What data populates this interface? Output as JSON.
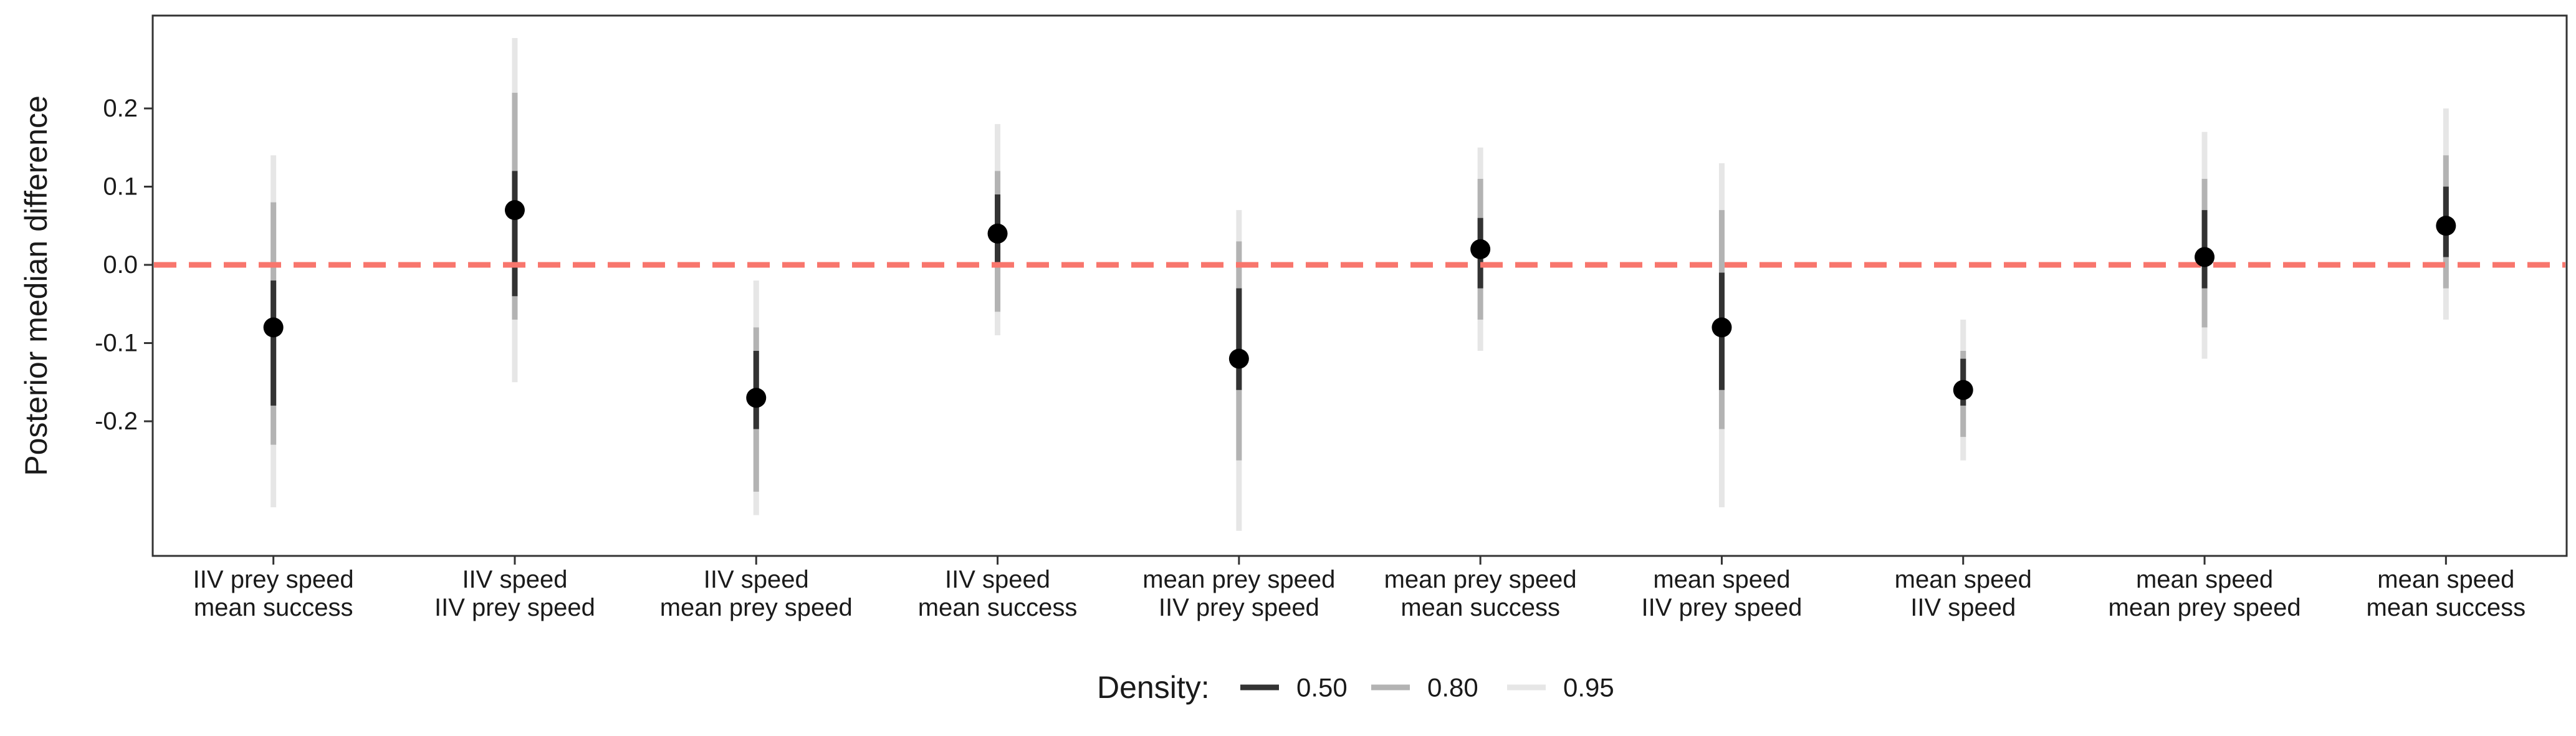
{
  "chart_data": {
    "type": "pointinterval",
    "title": "",
    "xlabel": "",
    "ylabel": "Posterior median difference",
    "ylim": [
      -0.37,
      0.32
    ],
    "yticks": [
      "0.2",
      "0.1",
      "0.0",
      "-0.1",
      "-0.2"
    ],
    "reference_line": {
      "y": 0,
      "style": "dashed",
      "color": "#f8766d"
    },
    "grid": false,
    "legend": {
      "position": "bottom",
      "title": "Density:",
      "items": [
        {
          "label": "0.50",
          "color": "#333333"
        },
        {
          "label": "0.80",
          "color": "#b3b3b3"
        },
        {
          "label": "0.95",
          "color": "#e6e6e6"
        }
      ]
    },
    "categories": [
      [
        "IIV prey speed",
        "mean success"
      ],
      [
        "IIV speed",
        "IIV prey speed"
      ],
      [
        "IIV speed",
        "mean prey speed"
      ],
      [
        "IIV speed",
        "mean success"
      ],
      [
        "mean prey speed",
        "IIV prey speed"
      ],
      [
        "mean prey speed",
        "mean success"
      ],
      [
        "mean speed",
        "IIV prey speed"
      ],
      [
        "mean speed",
        "IIV speed"
      ],
      [
        "mean speed",
        "mean prey speed"
      ],
      [
        "mean speed",
        "mean success"
      ]
    ],
    "median": [
      -0.08,
      0.07,
      -0.17,
      0.04,
      -0.12,
      0.02,
      -0.08,
      -0.16,
      0.01,
      0.05
    ],
    "interval_50": [
      [
        -0.18,
        -0.02
      ],
      [
        -0.04,
        0.12
      ],
      [
        -0.21,
        -0.11
      ],
      [
        0.0,
        0.09
      ],
      [
        -0.16,
        -0.03
      ],
      [
        -0.03,
        0.06
      ],
      [
        -0.16,
        -0.01
      ],
      [
        -0.18,
        -0.12
      ],
      [
        -0.03,
        0.07
      ],
      [
        0.01,
        0.1
      ]
    ],
    "interval_80": [
      [
        -0.23,
        0.08
      ],
      [
        -0.07,
        0.22
      ],
      [
        -0.29,
        -0.08
      ],
      [
        -0.06,
        0.12
      ],
      [
        -0.25,
        0.03
      ],
      [
        -0.07,
        0.11
      ],
      [
        -0.21,
        0.07
      ],
      [
        -0.22,
        -0.11
      ],
      [
        -0.08,
        0.11
      ],
      [
        -0.03,
        0.14
      ]
    ],
    "interval_95": [
      [
        -0.31,
        0.14
      ],
      [
        -0.15,
        0.29
      ],
      [
        -0.32,
        -0.02
      ],
      [
        -0.09,
        0.18
      ],
      [
        -0.34,
        0.07
      ],
      [
        -0.11,
        0.15
      ],
      [
        -0.31,
        0.13
      ],
      [
        -0.25,
        -0.07
      ],
      [
        -0.12,
        0.17
      ],
      [
        -0.07,
        0.2
      ]
    ],
    "colors": {
      "point": "#000000",
      "frame": "#333333"
    }
  }
}
